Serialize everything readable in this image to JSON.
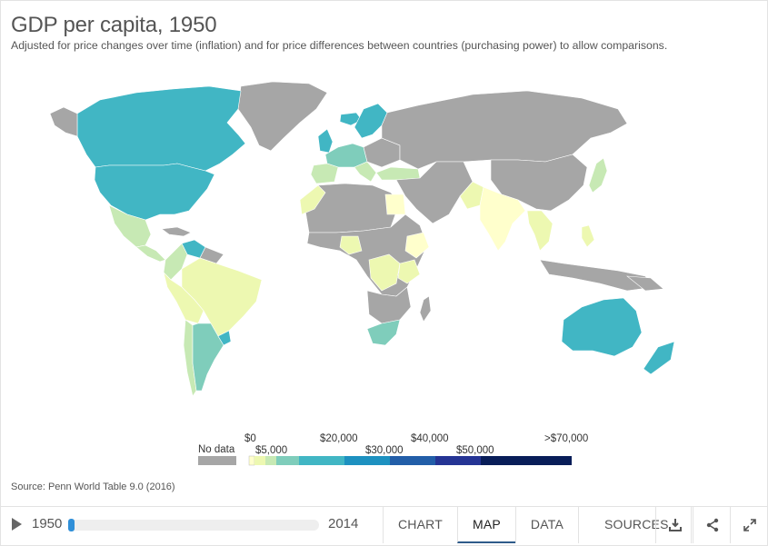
{
  "title": "GDP per capita, 1950",
  "subtitle": "Adjusted for price changes over time (inflation) and for price differences between countries (purchasing power) to allow comparisons.",
  "source": "Source: Penn World Table 9.0 (2016)",
  "colors": {
    "no_data": "#a6a6a6",
    "bins": [
      "#ffffcc",
      "#edf8b1",
      "#c7e9b4",
      "#7fcdbb",
      "#41b6c4",
      "#1d91c0",
      "#225ea8",
      "#253494",
      "#081d58"
    ]
  },
  "legend": {
    "no_data_label": "No data",
    "top_labels": [
      "$0",
      "$20,000",
      "$40,000",
      ">$70,000"
    ],
    "bottom_labels": [
      "$5,000",
      "$30,000",
      "$50,000"
    ]
  },
  "timeline": {
    "start_year": "1950",
    "end_year": "2014",
    "position": 0.0
  },
  "tabs": [
    "CHART",
    "MAP",
    "DATA",
    "SOURCES"
  ],
  "active_tab": "MAP",
  "icons": [
    "play-icon",
    "download-icon",
    "share-icon",
    "expand-icon"
  ]
}
